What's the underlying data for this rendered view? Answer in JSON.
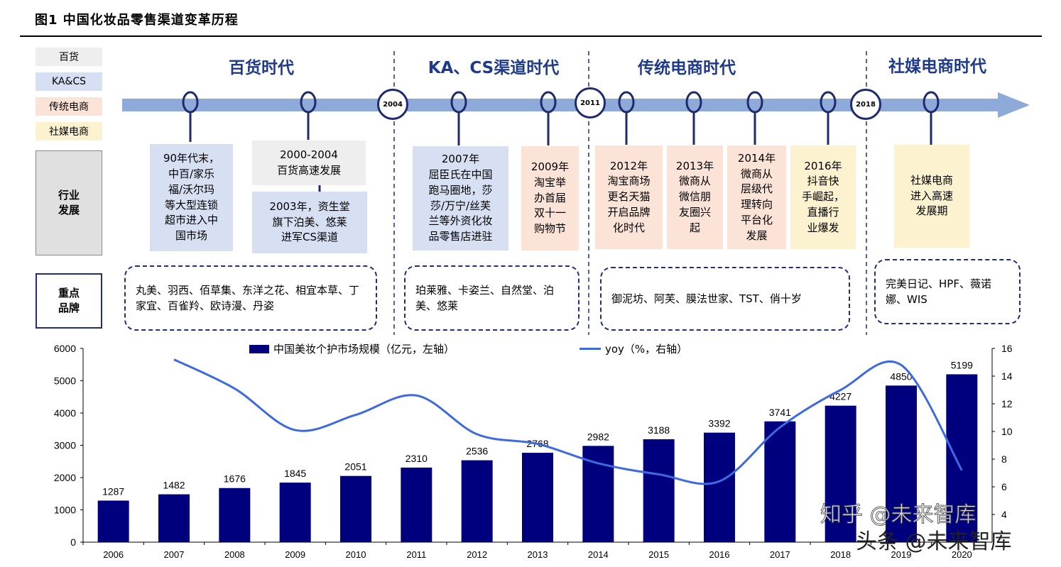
{
  "figure": {
    "title": "图1   中国化妆品零售渠道变革历程"
  },
  "legend_boxes": [
    {
      "label": "百货",
      "color": "#eeeeee"
    },
    {
      "label": "KA&CS",
      "color": "#d6e0f2"
    },
    {
      "label": "传统电商",
      "color": "#fbe3d8"
    },
    {
      "label": "社媒电商",
      "color": "#fdf2cf"
    }
  ],
  "side_labels": {
    "industry": "行业\n发展",
    "brands": "重点\n品牌"
  },
  "eras": [
    {
      "title": "百货时代"
    },
    {
      "title": "KA、CS渠道时代"
    },
    {
      "title": "传统电商时代"
    },
    {
      "title": "社媒电商时代"
    }
  ],
  "year_nodes": [
    "2004",
    "2011",
    "2018"
  ],
  "events": [
    {
      "text": "90年代末，\n中百/家乐\n福/沃尔玛\n等大型连锁\n超市进入中\n国市场",
      "color": "#d6e0f2"
    },
    {
      "text": "2000-2004\n百货高速发展",
      "color": "#eeeeee"
    },
    {
      "text": "2003年，资生堂\n旗下泊美、悠莱\n进军CS渠道",
      "color": "#d6e0f2"
    },
    {
      "text": "2007年\n屈臣氏在中国\n跑马圈地，莎\n莎/万宁/丝芙\n兰等外资化妆\n品零售店进驻",
      "color": "#d6e0f2"
    },
    {
      "text": "2009年\n淘宝举\n办首届\n双十一\n购物节",
      "color": "#fbe3d8"
    },
    {
      "text": "2012年\n淘宝商场\n更名天猫\n开启品牌\n化时代",
      "color": "#fbe3d8"
    },
    {
      "text": "2013年\n微商从\n微信朋\n友圈兴\n起",
      "color": "#fbe3d8"
    },
    {
      "text": "2014年\n微商从\n层级代\n理转向\n平台化\n发展",
      "color": "#fbe3d8"
    },
    {
      "text": "2016年\n抖音快\n手崛起，\n直播行\n业爆发",
      "color": "#fdf2cf"
    },
    {
      "text": "社媒电商\n进入高速\n发展期",
      "color": "#fdf2cf"
    }
  ],
  "brands": [
    {
      "text": "丸美、羽西、佰草集、东洋之花、相宜本草、丁家宜、百雀羚、欧诗漫、丹姿"
    },
    {
      "text": "珀莱雅、卡姿兰、自然堂、泊美、悠莱"
    },
    {
      "text": "御泥坊、阿芙、膜法世家、TST、俏十岁"
    },
    {
      "text": "完美日记、HPF、薇诺娜、WIS"
    }
  ],
  "colors": {
    "bar": "#00007f",
    "line": "#3e6ae0",
    "arrow": "#8eaad8",
    "era_title": "#1f3a8a"
  },
  "watermark": {
    "text1": "知乎 @未来智库",
    "text2": "头条 @未来智库"
  },
  "chart_data": {
    "type": "bar",
    "categories": [
      "2006",
      "2007",
      "2008",
      "2009",
      "2010",
      "2011",
      "2012",
      "2013",
      "2014",
      "2015",
      "2016",
      "2017",
      "2018",
      "2019",
      "2020"
    ],
    "series": [
      {
        "name": "中国美妆个护市场规模（亿元，左轴）",
        "type": "bar",
        "axis": "left",
        "values": [
          1287,
          1482,
          1676,
          1845,
          2051,
          2310,
          2536,
          2768,
          2982,
          3188,
          3392,
          3741,
          4227,
          4850,
          5199
        ]
      },
      {
        "name": "yoy（%，右轴）",
        "type": "line",
        "axis": "right",
        "values": [
          null,
          15.2,
          13.1,
          10.1,
          11.2,
          12.6,
          9.8,
          9.1,
          7.7,
          6.9,
          6.4,
          10.3,
          13.0,
          14.8,
          7.2
        ]
      }
    ],
    "ylim_left": [
      0,
      6000
    ],
    "yticks_left": [
      0,
      1000,
      2000,
      3000,
      4000,
      5000,
      6000
    ],
    "ylim_right": [
      2,
      16
    ],
    "yticks_right": [
      4,
      6,
      8,
      10,
      12,
      14,
      16
    ],
    "legend_position": "top"
  }
}
